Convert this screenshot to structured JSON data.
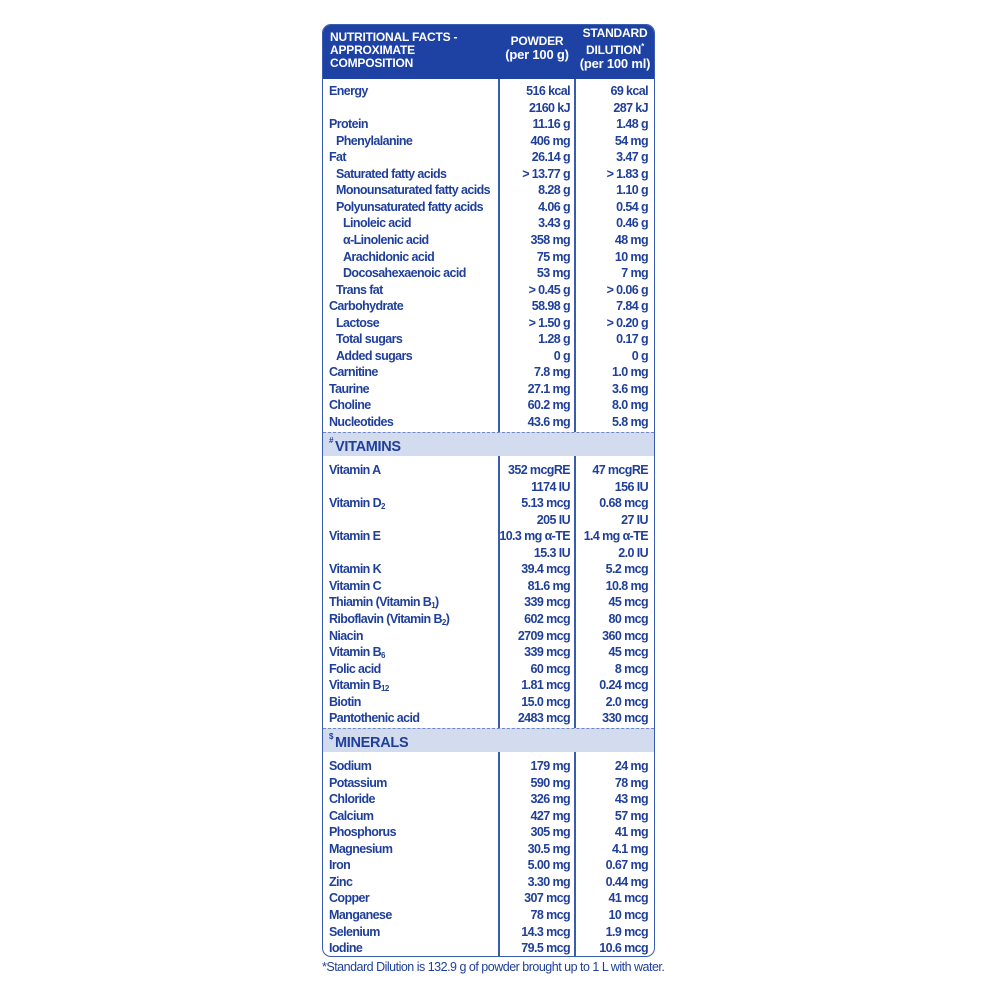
{
  "header": {
    "title_lines": [
      "NUTRITIONAL FACTS -",
      "APPROXIMATE",
      "COMPOSITION"
    ],
    "powder_lines": [
      "POWDER",
      "(per 100 g)"
    ],
    "dilution_lines": [
      "STANDARD",
      "DILUTION",
      "(per 100 ml)"
    ],
    "dilution_mark": "*"
  },
  "colors": {
    "header_bg": "#1d42a3",
    "text": "#1f3f9a",
    "section_bg": "#d3dcef"
  },
  "sections": [
    {
      "title": "",
      "rows": [
        {
          "label": "Energy",
          "indent": 0,
          "powder": [
            "516 kcal",
            "2160 kJ"
          ],
          "dilution": [
            "69 kcal",
            "287 kJ"
          ]
        },
        {
          "label": "Protein",
          "indent": 0,
          "powder": [
            "11.16 g"
          ],
          "dilution": [
            "1.48 g"
          ]
        },
        {
          "label": "Phenylalanine",
          "indent": 1,
          "powder": [
            "406 mg"
          ],
          "dilution": [
            "54 mg"
          ]
        },
        {
          "label": "Fat",
          "indent": 0,
          "powder": [
            "26.14 g"
          ],
          "dilution": [
            "3.47 g"
          ]
        },
        {
          "label": "Saturated fatty acids",
          "indent": 1,
          "powder": [
            "> 13.77 g"
          ],
          "dilution": [
            "> 1.83 g"
          ]
        },
        {
          "label": "Monounsaturated fatty acids",
          "indent": 1,
          "powder": [
            "8.28 g"
          ],
          "dilution": [
            "1.10 g"
          ]
        },
        {
          "label": "Polyunsaturated fatty acids",
          "indent": 1,
          "powder": [
            "4.06 g"
          ],
          "dilution": [
            "0.54 g"
          ]
        },
        {
          "label": "Linoleic acid",
          "indent": 2,
          "powder": [
            "3.43 g"
          ],
          "dilution": [
            "0.46 g"
          ]
        },
        {
          "label": "α-Linolenic acid",
          "indent": 2,
          "powder": [
            "358 mg"
          ],
          "dilution": [
            "48 mg"
          ]
        },
        {
          "label": "Arachidonic acid",
          "indent": 2,
          "powder": [
            "75 mg"
          ],
          "dilution": [
            "10 mg"
          ]
        },
        {
          "label": "Docosahexaenoic acid",
          "indent": 2,
          "powder": [
            "53 mg"
          ],
          "dilution": [
            "7 mg"
          ]
        },
        {
          "label": "Trans fat",
          "indent": 1,
          "powder": [
            "> 0.45 g"
          ],
          "dilution": [
            "> 0.06 g"
          ]
        },
        {
          "label": "Carbohydrate",
          "indent": 0,
          "powder": [
            "58.98 g"
          ],
          "dilution": [
            "7.84 g"
          ]
        },
        {
          "label": "Lactose",
          "indent": 1,
          "powder": [
            "> 1.50 g"
          ],
          "dilution": [
            "> 0.20 g"
          ]
        },
        {
          "label": "Total sugars",
          "indent": 1,
          "powder": [
            "1.28 g"
          ],
          "dilution": [
            "0.17 g"
          ]
        },
        {
          "label": "Added sugars",
          "indent": 1,
          "powder": [
            "0 g"
          ],
          "dilution": [
            "0 g"
          ]
        },
        {
          "label": "Carnitine",
          "indent": 0,
          "powder": [
            "7.8 mg"
          ],
          "dilution": [
            "1.0 mg"
          ]
        },
        {
          "label": "Taurine",
          "indent": 0,
          "powder": [
            "27.1 mg"
          ],
          "dilution": [
            "3.6 mg"
          ]
        },
        {
          "label": "Choline",
          "indent": 0,
          "powder": [
            "60.2 mg"
          ],
          "dilution": [
            "8.0 mg"
          ]
        },
        {
          "label": "Nucleotides",
          "indent": 0,
          "powder": [
            "43.6 mg"
          ],
          "dilution": [
            "5.8 mg"
          ]
        }
      ]
    },
    {
      "title": "VITAMINS",
      "mark": "#",
      "rows": [
        {
          "label": "Vitamin A",
          "indent": 0,
          "powder": [
            "352 mcgRE",
            "1174 IU"
          ],
          "dilution": [
            "47 mcgRE",
            "156 IU"
          ]
        },
        {
          "label": "Vitamin D",
          "sub": "2",
          "indent": 0,
          "powder": [
            "5.13 mcg",
            "205 IU"
          ],
          "dilution": [
            "0.68 mcg",
            "27 IU"
          ]
        },
        {
          "label": "Vitamin E",
          "indent": 0,
          "powder": [
            "10.3 mg α-TE",
            "15.3 IU"
          ],
          "dilution": [
            "1.4 mg α-TE",
            "2.0 IU"
          ]
        },
        {
          "label": "Vitamin K",
          "indent": 0,
          "powder": [
            "39.4 mcg"
          ],
          "dilution": [
            "5.2 mcg"
          ]
        },
        {
          "label": "Vitamin C",
          "indent": 0,
          "powder": [
            "81.6 mg"
          ],
          "dilution": [
            "10.8 mg"
          ]
        },
        {
          "label": "Thiamin (Vitamin B",
          "sub": "1",
          "after": ")",
          "indent": 0,
          "powder": [
            "339 mcg"
          ],
          "dilution": [
            "45 mcg"
          ]
        },
        {
          "label": "Riboflavin (Vitamin B",
          "sub": "2",
          "after": ")",
          "indent": 0,
          "powder": [
            "602 mcg"
          ],
          "dilution": [
            "80 mcg"
          ]
        },
        {
          "label": "Niacin",
          "indent": 0,
          "powder": [
            "2709 mcg"
          ],
          "dilution": [
            "360 mcg"
          ]
        },
        {
          "label": "Vitamin B",
          "sub": "6",
          "indent": 0,
          "powder": [
            "339 mcg"
          ],
          "dilution": [
            "45 mcg"
          ]
        },
        {
          "label": "Folic acid",
          "indent": 0,
          "powder": [
            "60 mcg"
          ],
          "dilution": [
            "8 mcg"
          ]
        },
        {
          "label": "Vitamin B",
          "sub": "12",
          "indent": 0,
          "powder": [
            "1.81 mcg"
          ],
          "dilution": [
            "0.24 mcg"
          ]
        },
        {
          "label": "Biotin",
          "indent": 0,
          "powder": [
            "15.0 mcg"
          ],
          "dilution": [
            "2.0 mcg"
          ]
        },
        {
          "label": "Pantothenic acid",
          "indent": 0,
          "powder": [
            "2483 mcg"
          ],
          "dilution": [
            "330 mcg"
          ]
        }
      ]
    },
    {
      "title": "MINERALS",
      "mark": "$",
      "rows": [
        {
          "label": "Sodium",
          "indent": 0,
          "powder": [
            "179 mg"
          ],
          "dilution": [
            "24 mg"
          ]
        },
        {
          "label": "Potassium",
          "indent": 0,
          "powder": [
            "590 mg"
          ],
          "dilution": [
            "78 mg"
          ]
        },
        {
          "label": "Chloride",
          "indent": 0,
          "powder": [
            "326 mg"
          ],
          "dilution": [
            "43 mg"
          ]
        },
        {
          "label": "Calcium",
          "indent": 0,
          "powder": [
            "427 mg"
          ],
          "dilution": [
            "57 mg"
          ]
        },
        {
          "label": "Phosphorus",
          "indent": 0,
          "powder": [
            "305 mg"
          ],
          "dilution": [
            "41 mg"
          ]
        },
        {
          "label": "Magnesium",
          "indent": 0,
          "powder": [
            "30.5 mg"
          ],
          "dilution": [
            "4.1 mg"
          ]
        },
        {
          "label": "Iron",
          "indent": 0,
          "powder": [
            "5.00 mg"
          ],
          "dilution": [
            "0.67 mg"
          ]
        },
        {
          "label": "Zinc",
          "indent": 0,
          "powder": [
            "3.30 mg"
          ],
          "dilution": [
            "0.44 mg"
          ]
        },
        {
          "label": "Copper",
          "indent": 0,
          "powder": [
            "307 mcg"
          ],
          "dilution": [
            "41 mcg"
          ]
        },
        {
          "label": "Manganese",
          "indent": 0,
          "powder": [
            "78 mcg"
          ],
          "dilution": [
            "10 mcg"
          ]
        },
        {
          "label": "Selenium",
          "indent": 0,
          "powder": [
            "14.3 mcg"
          ],
          "dilution": [
            "1.9 mcg"
          ]
        },
        {
          "label": "Iodine",
          "indent": 0,
          "powder": [
            "79.5 mcg"
          ],
          "dilution": [
            "10.6 mcg"
          ]
        }
      ]
    }
  ],
  "footnote": "*Standard Dilution is 132.9 g of powder brought up to 1 L with water."
}
